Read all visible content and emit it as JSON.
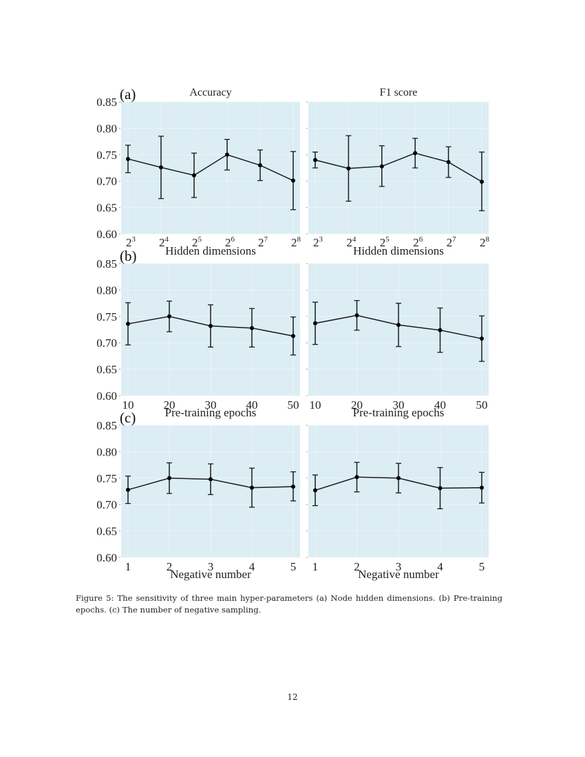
{
  "figure": {
    "caption": "Figure 5: The sensitivity of three main hyper-parameters (a) Node hidden dimensions. (b) Pre-training epochs. (c) The number of negative sampling.",
    "page_number": "12",
    "colors": {
      "plot_background": "#dcedf4",
      "line": "#1a1a1a",
      "grid": "#eef6fa"
    }
  },
  "chart_data": [
    {
      "type": "line",
      "panel": "a-left",
      "panel_label": "(a)",
      "title": "Accuracy",
      "xlabel": "Hidden dimensions",
      "ylabel": "",
      "categories": [
        "2^3",
        "2^4",
        "2^5",
        "2^6",
        "2^7",
        "2^8"
      ],
      "x_tick_base": [
        "2",
        "2",
        "2",
        "2",
        "2",
        "2"
      ],
      "x_tick_exp": [
        "3",
        "4",
        "5",
        "6",
        "7",
        "8"
      ],
      "ylim": [
        0.6,
        0.85
      ],
      "yticks": [
        "0.60",
        "0.65",
        "0.70",
        "0.75",
        "0.80",
        "0.85"
      ],
      "grid": true,
      "values": [
        0.742,
        0.726,
        0.711,
        0.75,
        0.73,
        0.701
      ],
      "err_low": [
        0.716,
        0.667,
        0.669,
        0.721,
        0.701,
        0.646
      ],
      "err_high": [
        0.768,
        0.785,
        0.753,
        0.779,
        0.759,
        0.756
      ]
    },
    {
      "type": "line",
      "panel": "a-right",
      "panel_label": "",
      "title": "F1 score",
      "xlabel": "Hidden dimensions",
      "ylabel": "",
      "categories": [
        "2^3",
        "2^4",
        "2^5",
        "2^6",
        "2^7",
        "2^8"
      ],
      "x_tick_base": [
        "2",
        "2",
        "2",
        "2",
        "2",
        "2"
      ],
      "x_tick_exp": [
        "3",
        "4",
        "5",
        "6",
        "7",
        "8"
      ],
      "ylim": [
        0.6,
        0.85
      ],
      "yticks": [],
      "grid": true,
      "values": [
        0.74,
        0.724,
        0.728,
        0.753,
        0.736,
        0.699
      ],
      "err_low": [
        0.725,
        0.662,
        0.69,
        0.725,
        0.707,
        0.644
      ],
      "err_high": [
        0.755,
        0.786,
        0.767,
        0.781,
        0.765,
        0.755
      ]
    },
    {
      "type": "line",
      "panel": "b-left",
      "panel_label": "(b)",
      "title": "",
      "xlabel": "Pre-training epochs",
      "ylabel": "",
      "categories": [
        "10",
        "20",
        "30",
        "40",
        "50"
      ],
      "ylim": [
        0.6,
        0.85
      ],
      "yticks": [
        "0.60",
        "0.65",
        "0.70",
        "0.75",
        "0.80",
        "0.85"
      ],
      "grid": true,
      "values": [
        0.736,
        0.75,
        0.732,
        0.728,
        0.713
      ],
      "err_low": [
        0.696,
        0.721,
        0.692,
        0.692,
        0.677
      ],
      "err_high": [
        0.776,
        0.779,
        0.772,
        0.765,
        0.749
      ]
    },
    {
      "type": "line",
      "panel": "b-right",
      "panel_label": "",
      "title": "",
      "xlabel": "Pre-training epochs",
      "ylabel": "",
      "categories": [
        "10",
        "20",
        "30",
        "40",
        "50"
      ],
      "ylim": [
        0.6,
        0.85
      ],
      "yticks": [],
      "grid": true,
      "values": [
        0.737,
        0.752,
        0.734,
        0.724,
        0.708
      ],
      "err_low": [
        0.697,
        0.724,
        0.693,
        0.682,
        0.665
      ],
      "err_high": [
        0.777,
        0.78,
        0.775,
        0.766,
        0.751
      ]
    },
    {
      "type": "line",
      "panel": "c-left",
      "panel_label": "(c)",
      "title": "",
      "xlabel": "Negative number",
      "ylabel": "",
      "categories": [
        "1",
        "2",
        "3",
        "4",
        "5"
      ],
      "ylim": [
        0.6,
        0.85
      ],
      "yticks": [
        "0.60",
        "0.65",
        "0.70",
        "0.75",
        "0.80",
        "0.85"
      ],
      "grid": true,
      "values": [
        0.728,
        0.75,
        0.748,
        0.732,
        0.734
      ],
      "err_low": [
        0.702,
        0.721,
        0.719,
        0.695,
        0.707
      ],
      "err_high": [
        0.754,
        0.779,
        0.777,
        0.769,
        0.762
      ]
    },
    {
      "type": "line",
      "panel": "c-right",
      "panel_label": "",
      "title": "",
      "xlabel": "Negative number",
      "ylabel": "",
      "categories": [
        "1",
        "2",
        "3",
        "4",
        "5"
      ],
      "ylim": [
        0.6,
        0.85
      ],
      "yticks": [],
      "grid": true,
      "values": [
        0.727,
        0.752,
        0.75,
        0.731,
        0.732
      ],
      "err_low": [
        0.698,
        0.724,
        0.722,
        0.692,
        0.703
      ],
      "err_high": [
        0.756,
        0.78,
        0.778,
        0.77,
        0.761
      ]
    }
  ]
}
